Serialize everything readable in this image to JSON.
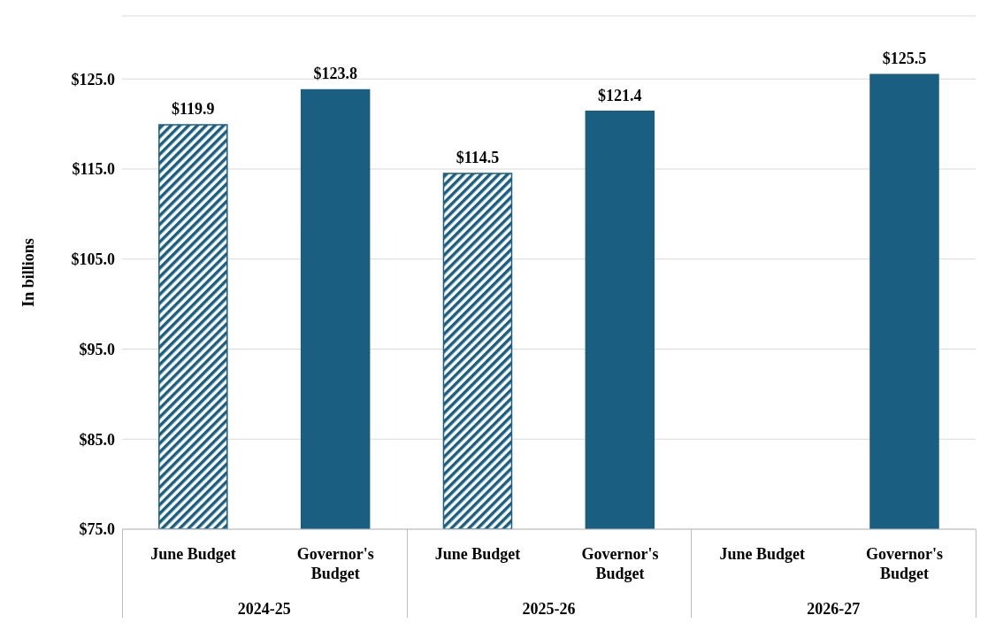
{
  "chart_data": {
    "type": "bar",
    "ylabel": "In billions",
    "categories": [
      "June Budget",
      "Governor's Budget",
      "June Budget",
      "Governor's Budget",
      "June Budget",
      "Governor's Budget"
    ],
    "series": [
      {
        "color": "#1a5f82",
        "values": [
          119.9,
          null,
          114.5,
          null,
          null,
          null
        ],
        "value_labels": [
          "$119.9",
          null,
          "$114.5",
          null,
          null,
          null
        ]
      },
      {
        "color": "#1a5f82",
        "values": [
          null,
          123.8,
          null,
          121.4,
          null,
          125.5
        ],
        "value_labels": [
          null,
          "$123.8",
          null,
          "$121.4",
          null,
          "$125.5"
        ]
      }
    ],
    "stacked": true,
    "ylim": [
      75,
      132
    ],
    "yticks": [
      {
        "value": 75,
        "label": "$75.0"
      },
      {
        "value": 85,
        "label": "$85.0"
      },
      {
        "value": 95,
        "label": "$95.0"
      },
      {
        "value": 105,
        "label": "$105.0"
      },
      {
        "value": 115,
        "label": "$115.0"
      },
      {
        "value": 125,
        "label": "$125.0"
      }
    ],
    "grid": "y",
    "legend": false,
    "annotations": [
      "2024-25",
      "2025-26",
      "2026-27"
    ]
  }
}
